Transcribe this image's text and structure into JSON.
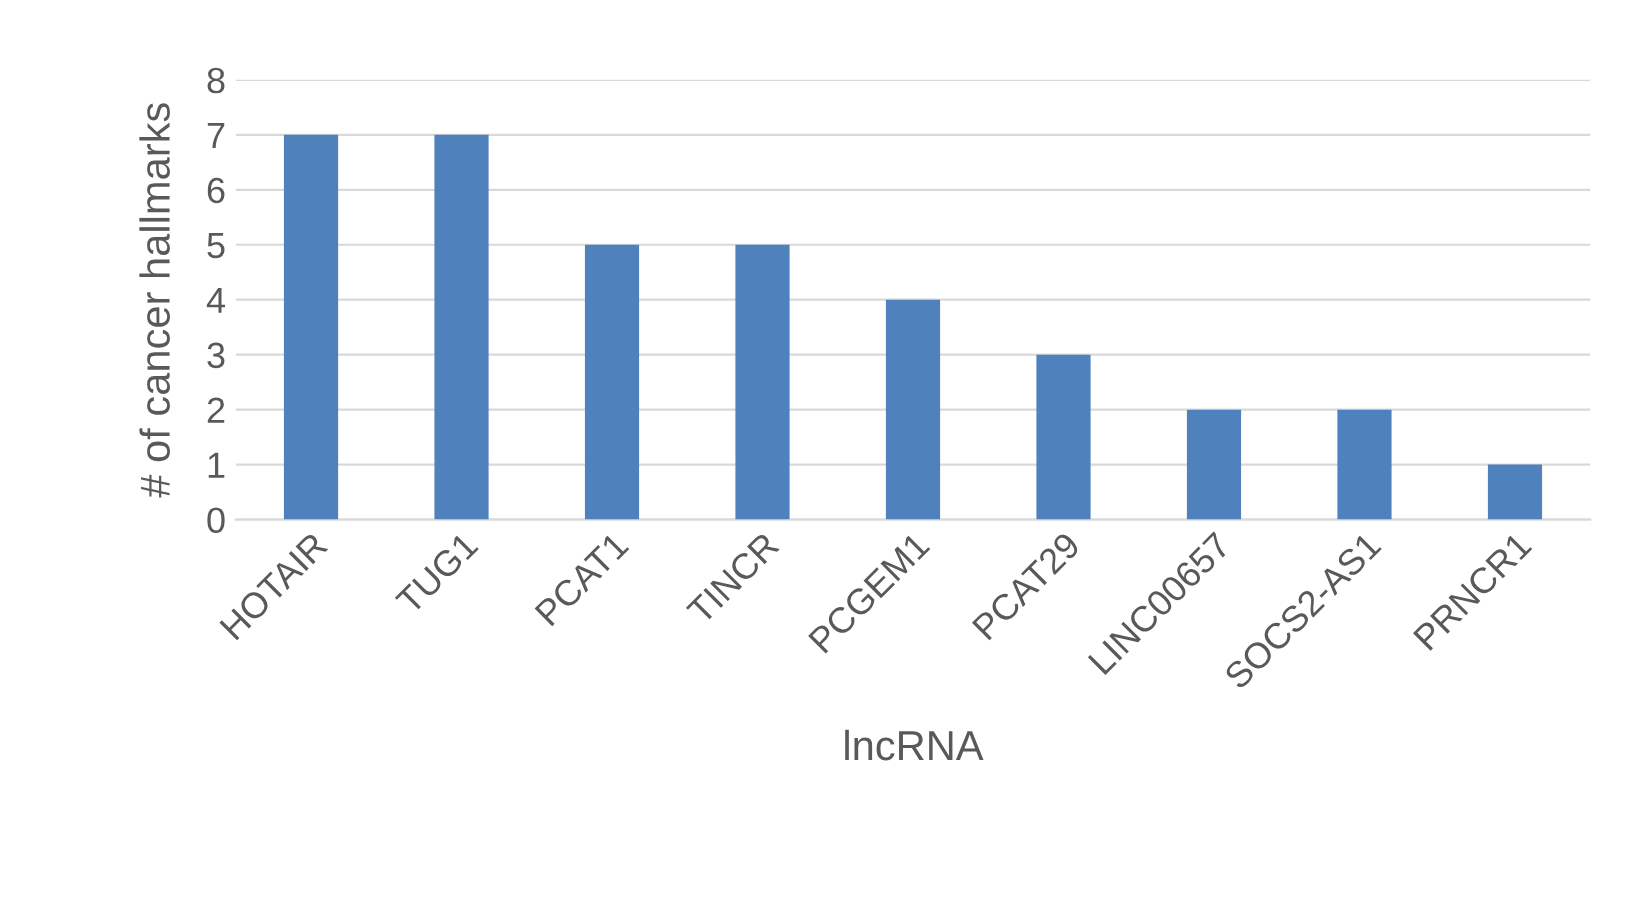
{
  "chart_data": {
    "type": "bar",
    "xlabel": "lncRNA",
    "ylabel": "# of cancer hallmarks",
    "categories": [
      "HOTAIR",
      "TUG1",
      "PCAT1",
      "TINCR",
      "PCGEM1",
      "PCAT29",
      "LINC00657",
      "SOCS2-AS1",
      "PRNCR1"
    ],
    "values": [
      7,
      7,
      5,
      5,
      4,
      3,
      2,
      2,
      1
    ],
    "color": "#4f81bd",
    "ylim": [
      0,
      8
    ],
    "yticks": [
      0,
      1,
      2,
      3,
      4,
      5,
      6,
      7,
      8
    ],
    "grid": "y",
    "legend": false
  }
}
